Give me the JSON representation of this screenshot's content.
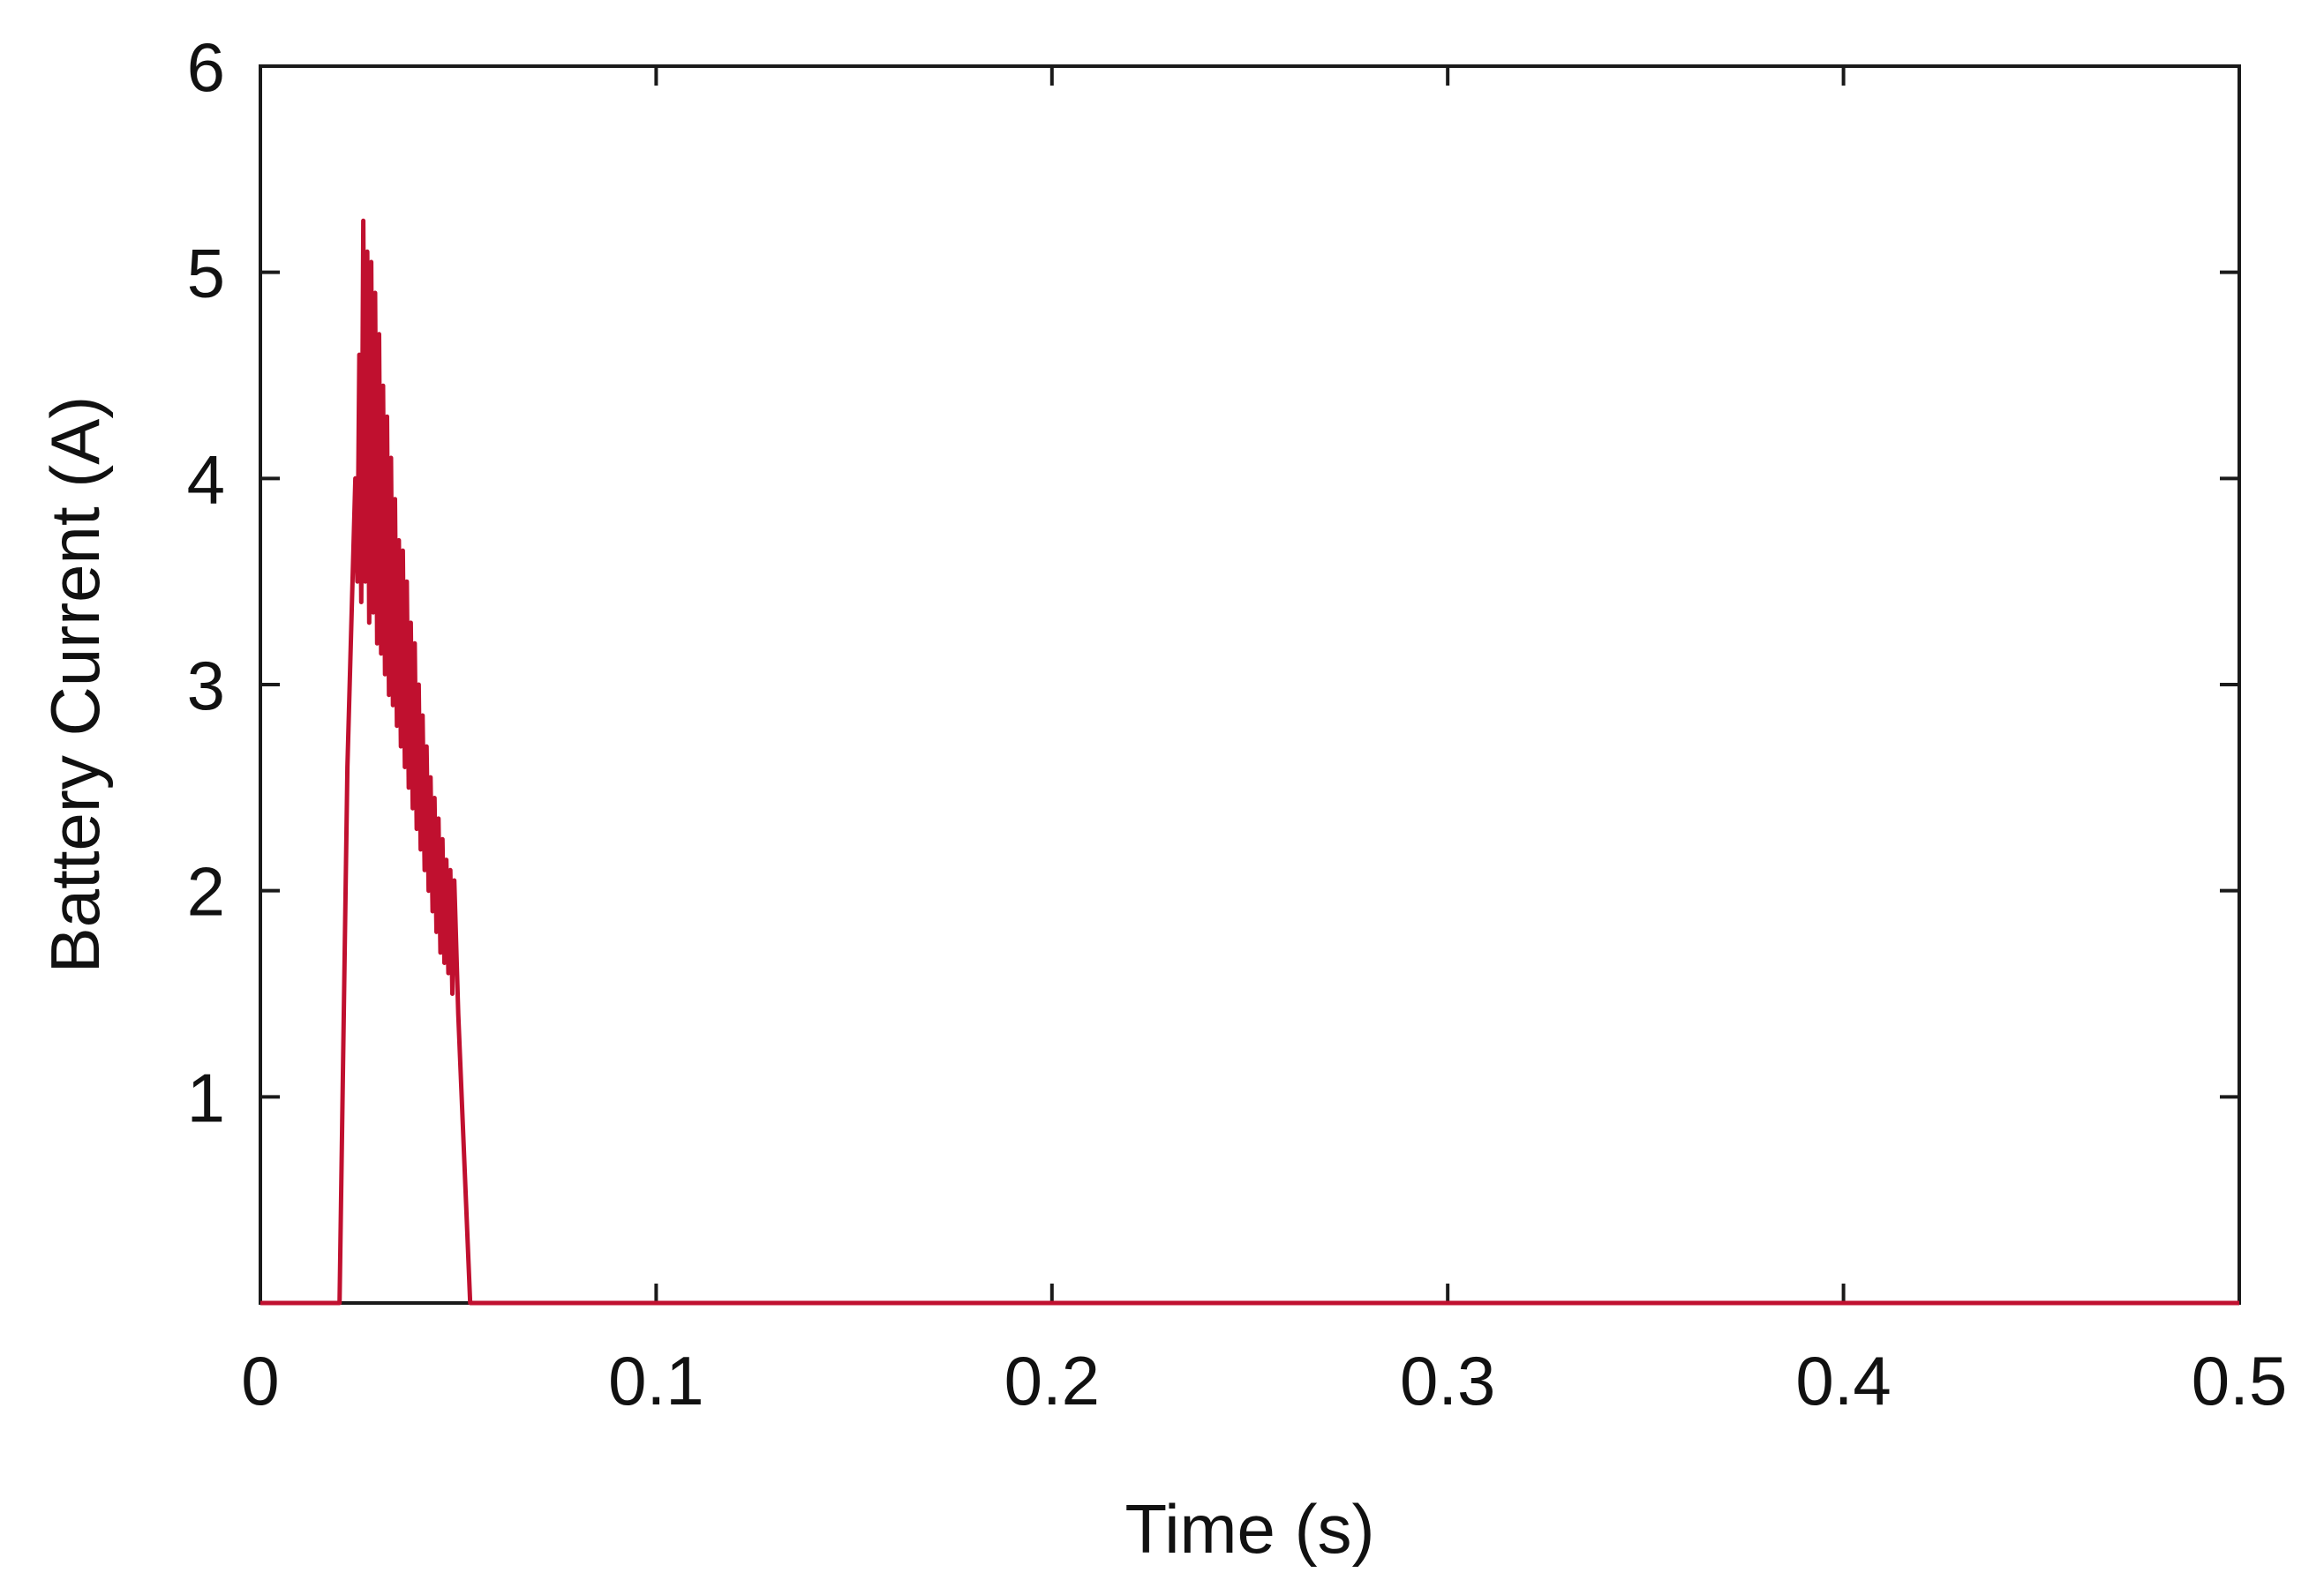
{
  "chart_data": {
    "type": "line",
    "title": "",
    "xlabel": "Time (s)",
    "ylabel": "Battery Current (A)",
    "xlim": [
      0,
      0.5
    ],
    "ylim": [
      0,
      6
    ],
    "xticks": [
      0,
      0.1,
      0.2,
      0.3,
      0.4,
      0.5
    ],
    "xtick_labels": [
      "0",
      "0.1",
      "0.2",
      "0.3",
      "0.4",
      "0.5"
    ],
    "yticks": [
      1,
      2,
      3,
      4,
      5,
      6
    ],
    "ytick_labels": [
      "1",
      "2",
      "3",
      "4",
      "5",
      "6"
    ],
    "grid": false,
    "legend": "none",
    "series": [
      {
        "color": "#c0102f",
        "x": [
          0,
          0.02,
          0.022,
          0.024,
          0.0245,
          0.025,
          0.0255,
          0.026,
          0.0265,
          0.027,
          0.0275,
          0.028,
          0.0285,
          0.029,
          0.0295,
          0.03,
          0.0305,
          0.031,
          0.0315,
          0.032,
          0.0325,
          0.033,
          0.0335,
          0.034,
          0.0345,
          0.035,
          0.0355,
          0.036,
          0.0365,
          0.037,
          0.0375,
          0.038,
          0.0385,
          0.039,
          0.0395,
          0.04,
          0.0405,
          0.041,
          0.0415,
          0.042,
          0.0425,
          0.043,
          0.0435,
          0.044,
          0.0445,
          0.045,
          0.0455,
          0.046,
          0.0465,
          0.047,
          0.0475,
          0.048,
          0.0485,
          0.049,
          0.05,
          0.053,
          0.5
        ],
        "y": [
          0,
          0,
          2.6,
          4.0,
          3.5,
          4.6,
          3.4,
          5.25,
          3.5,
          5.1,
          3.3,
          5.05,
          3.35,
          4.9,
          3.2,
          4.7,
          3.15,
          4.45,
          3.05,
          4.3,
          2.95,
          4.1,
          2.9,
          3.9,
          2.8,
          3.7,
          2.7,
          3.65,
          2.6,
          3.5,
          2.5,
          3.3,
          2.4,
          3.2,
          2.3,
          3.0,
          2.2,
          2.85,
          2.1,
          2.7,
          2.0,
          2.55,
          1.9,
          2.45,
          1.8,
          2.35,
          1.7,
          2.25,
          1.65,
          2.15,
          1.6,
          2.1,
          1.5,
          2.05,
          1.4,
          0,
          0
        ]
      }
    ]
  }
}
